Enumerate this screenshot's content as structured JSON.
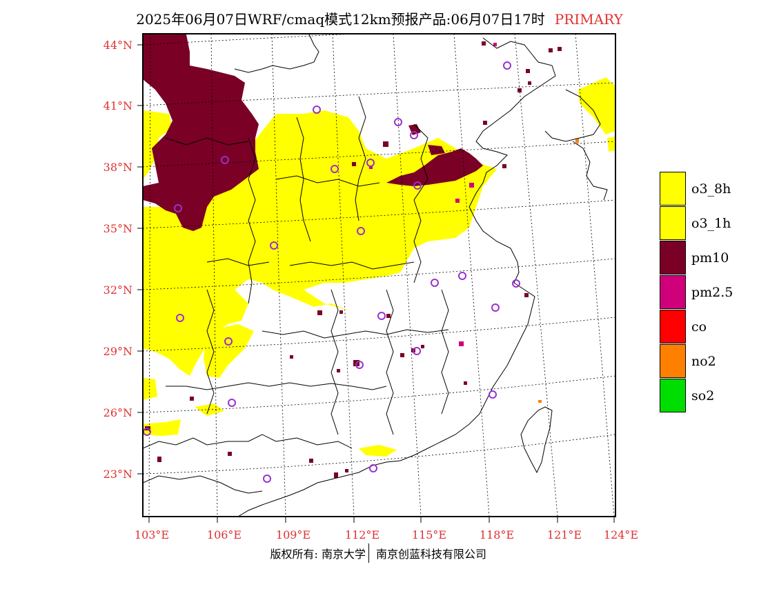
{
  "header": {
    "title": "2025年06月07日WRF/cmaq模式12km预报产品:06月07日17时",
    "tag": "PRIMARY"
  },
  "map": {
    "lat_labels": [
      "44°N",
      "41°N",
      "38°N",
      "35°N",
      "32°N",
      "29°N",
      "26°N",
      "23°N"
    ],
    "lon_labels": [
      "103°E",
      "106°E",
      "109°E",
      "112°E",
      "115°E",
      "118°E",
      "121°E",
      "124°E"
    ],
    "colors": {
      "o3_8h": "#ffff00",
      "o3_1h": "#ffff00",
      "pm10": "#7a0026",
      "pm2_5": "#d0007a",
      "co": "#ff0000",
      "no2": "#ff8000",
      "so2": "#00dd00",
      "station": "#9a30d0",
      "tick_label": "#e03030"
    }
  },
  "legend": {
    "items": [
      {
        "label": "o3_8h",
        "color": "#ffff00"
      },
      {
        "label": "o3_1h",
        "color": "#ffff00"
      },
      {
        "label": "pm10",
        "color": "#7a0026"
      },
      {
        "label": "pm2.5",
        "color": "#d0007a"
      },
      {
        "label": "co",
        "color": "#ff0000"
      },
      {
        "label": "no2",
        "color": "#ff8000"
      },
      {
        "label": "so2",
        "color": "#00dd00"
      }
    ]
  },
  "footer": {
    "copyright": "版权所有: 南京大学",
    "company": "南京创蓝科技有限公司"
  }
}
